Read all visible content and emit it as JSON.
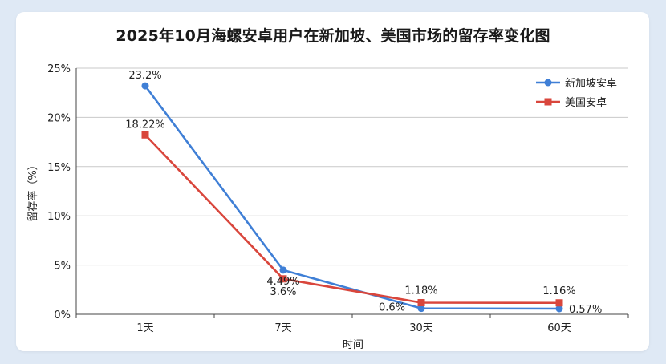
{
  "chart_data": {
    "type": "line",
    "title": "2025年10月海螺安卓用户在新加坡、美国市场的留存率变化图",
    "xlabel": "时间",
    "ylabel": "留存率（%）",
    "categories": [
      "1天",
      "7天",
      "30天",
      "60天"
    ],
    "ylim": [
      0,
      25
    ],
    "yticks": [
      0,
      5,
      10,
      15,
      20,
      25
    ],
    "ytick_labels": [
      "0%",
      "5%",
      "10%",
      "15%",
      "20%",
      "25%"
    ],
    "grid": "horizontal",
    "legend_position": "top-right",
    "series": [
      {
        "name": "新加坡安卓",
        "values": [
          23.2,
          4.49,
          0.6,
          0.57
        ],
        "labels": [
          "23.2%",
          "4.49%",
          "0.6%",
          "0.57%"
        ],
        "color": "#3f7fd6",
        "marker": "circle"
      },
      {
        "name": "美国安卓",
        "values": [
          18.22,
          3.6,
          1.18,
          1.16
        ],
        "labels": [
          "18.22%",
          "3.6%",
          "1.18%",
          "1.16%"
        ],
        "color": "#d9463c",
        "marker": "square"
      }
    ]
  }
}
